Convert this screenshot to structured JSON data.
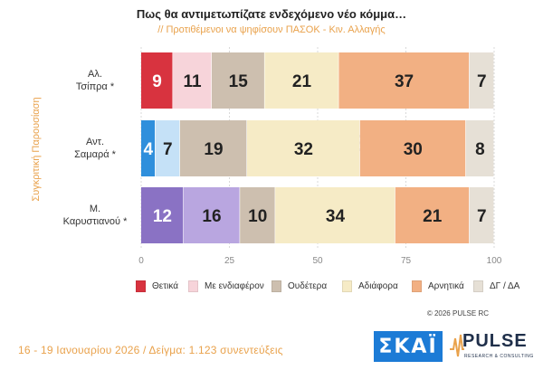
{
  "header": {
    "title": "Πως θα αντιμετωπίζατε ενδεχόμενο νέο κόμμα…",
    "subtitle": "// Προτιθέμενοι να ψηφίσουν ΠΑΣΟΚ - Κιν. Αλλαγής"
  },
  "side_label": "Συγκριτική Παρουσίαση",
  "rows": [
    {
      "line1": "Αλ.",
      "line2": "Τσίπρα *"
    },
    {
      "line1": "Αντ.",
      "line2": "Σαμαρά *"
    },
    {
      "line1": "Μ.",
      "line2": "Καρυστιανού *"
    }
  ],
  "chart_data": {
    "type": "bar",
    "orientation": "horizontal-stacked",
    "categories": [
      "Αλ. Τσίπρα *",
      "Αντ. Σαμαρά *",
      "Μ. Καρυστιανού *"
    ],
    "xlim": [
      0,
      100
    ],
    "xticks": [
      0,
      25,
      50,
      75,
      100
    ],
    "legend_position": "bottom",
    "series": [
      {
        "name": "Θετικά",
        "values": [
          9,
          4,
          12
        ]
      },
      {
        "name": "Με ενδιαφέρον",
        "values": [
          11,
          7,
          16
        ]
      },
      {
        "name": "Ουδέτερα",
        "values": [
          15,
          19,
          10
        ]
      },
      {
        "name": "Αδιάφορα",
        "values": [
          21,
          32,
          34
        ]
      },
      {
        "name": "Αρνητικά",
        "values": [
          37,
          30,
          21
        ]
      },
      {
        "name": "ΔΓ / ΔΑ",
        "values": [
          7,
          8,
          7
        ]
      }
    ],
    "colors": [
      [
        "#d8333f",
        "#f7d4da",
        "#cdbfaf",
        "#f6ebc6",
        "#f2b083",
        "#e6e0d6"
      ],
      [
        "#2f8fdc",
        "#c5e1f7",
        "#cdbfaf",
        "#f6ebc6",
        "#f2b083",
        "#e6e0d6"
      ],
      [
        "#8a72c4",
        "#b9a6e0",
        "#cdbfaf",
        "#f6ebc6",
        "#f2b083",
        "#e6e0d6"
      ]
    ],
    "label_colors": [
      [
        "#ffffff",
        "#222222",
        "#222222",
        "#222222",
        "#222222",
        "#222222"
      ],
      [
        "#ffffff",
        "#222222",
        "#222222",
        "#222222",
        "#222222",
        "#222222"
      ],
      [
        "#ffffff",
        "#222222",
        "#222222",
        "#222222",
        "#222222",
        "#222222"
      ]
    ]
  },
  "legend": [
    {
      "label": "Θετικά",
      "color": "#d8333f"
    },
    {
      "label": "Με ενδιαφέρον",
      "color": "#f7d4da"
    },
    {
      "label": "Ουδέτερα",
      "color": "#cdbfaf"
    },
    {
      "label": "Αδιάφορα",
      "color": "#f6ebc6"
    },
    {
      "label": "Αρνητικά",
      "color": "#f2b083"
    },
    {
      "label": "ΔΓ / ΔΑ",
      "color": "#e6e0d6"
    }
  ],
  "copyright": "© 2026 PULSE RC",
  "footer_note": "16 - 19 Ιανουαρίου 2026  /  Δείγμα:  1.123 συνεντεύξεις",
  "logos": {
    "skai": "ΣΚΑΪ",
    "pulse": "PULSE",
    "pulse_sub": "RESEARCH & CONSULTING"
  }
}
